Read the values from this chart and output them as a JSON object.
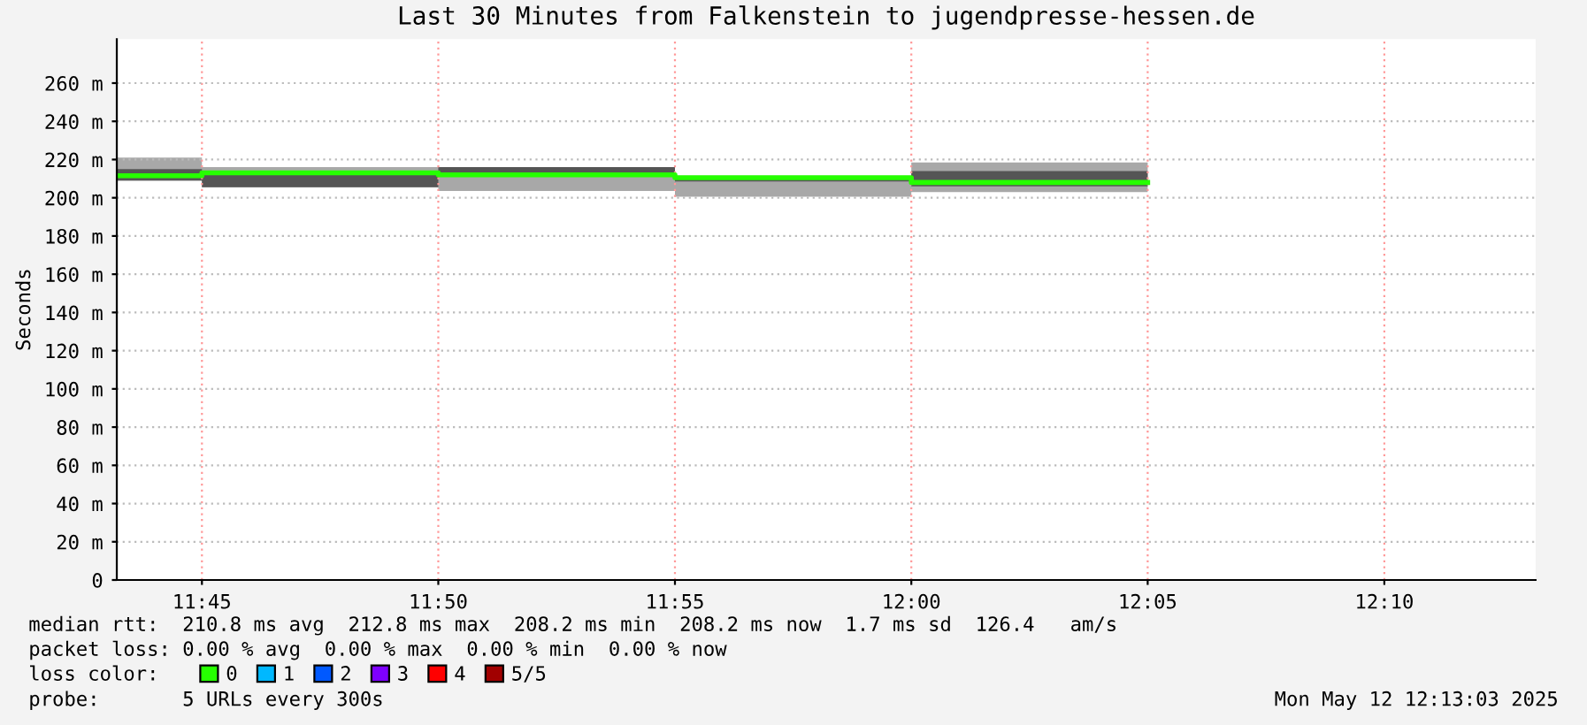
{
  "chart_data": {
    "type": "step",
    "title": "Last 30 Minutes from Falkenstein to jugendpresse-hessen.de",
    "ylabel": "Seconds",
    "x": [
      11.72,
      11.75,
      11.8333,
      11.9167,
      12.0,
      12.0833
    ],
    "series": [
      {
        "color": "#a8a8a8",
        "values": [
          null,
          null,
          null,
          null,
          null,
          null
        ],
        "lower": [
          209,
          205.5,
          203.5,
          200.5,
          203,
          203
        ],
        "upper": [
          221,
          216,
          216,
          211.5,
          218.5,
          218.5
        ]
      },
      {
        "color": "#555555",
        "values": [
          null,
          null,
          null,
          null,
          null,
          null
        ],
        "lower": [
          209,
          205.5,
          211,
          208.5,
          206,
          206
        ],
        "upper": [
          215,
          214,
          216,
          211,
          214,
          214
        ]
      },
      {
        "name": "0",
        "color": "#26ff00",
        "values": [
          211.5,
          213,
          212,
          210.5,
          208,
          208
        ]
      },
      {
        "name": "1",
        "color": "#00b8ff",
        "values": [
          null,
          null,
          null,
          null,
          null,
          null
        ]
      },
      {
        "name": "2",
        "color": "#0059ff",
        "values": [
          null,
          null,
          null,
          null,
          null,
          null
        ]
      },
      {
        "name": "3",
        "color": "#7e00ff",
        "values": [
          null,
          null,
          null,
          null,
          null,
          null
        ]
      },
      {
        "name": "4",
        "color": "#ff0000",
        "values": [
          null,
          null,
          null,
          null,
          null,
          null
        ]
      },
      {
        "name": "5/5",
        "color": "#a10000",
        "values": [
          null,
          null,
          null,
          null,
          null,
          null
        ]
      }
    ],
    "legend_title": "loss color:",
    "legend": "bottom left",
    "xlim": [
      11.72,
      12.22
    ],
    "xticks": [
      {
        "value": 11.75,
        "label": "11:45"
      },
      {
        "value": 11.8333,
        "label": "11:50"
      },
      {
        "value": 11.9167,
        "label": "11:55"
      },
      {
        "value": 12.0,
        "label": "12:00"
      },
      {
        "value": 12.0833,
        "label": "12:05"
      },
      {
        "value": 12.1667,
        "label": "12:10"
      }
    ],
    "ylim": [
      0,
      283
    ],
    "yticks": [
      {
        "value": 0,
        "label": "0"
      },
      {
        "value": 20,
        "label": "20 m"
      },
      {
        "value": 40,
        "label": "40 m"
      },
      {
        "value": 60,
        "label": "60 m"
      },
      {
        "value": 80,
        "label": "80 m"
      },
      {
        "value": 100,
        "label": "100 m"
      },
      {
        "value": 120,
        "label": "120 m"
      },
      {
        "value": 140,
        "label": "140 m"
      },
      {
        "value": 160,
        "label": "160 m"
      },
      {
        "value": 180,
        "label": "180 m"
      },
      {
        "value": 200,
        "label": "200 m"
      },
      {
        "value": 220,
        "label": "220 m"
      },
      {
        "value": 240,
        "label": "240 m"
      },
      {
        "value": 260,
        "label": "260 m"
      }
    ],
    "grid": true,
    "annotations": [
      "median rtt:  210.8 ms avg  212.8 ms max  208.2 ms min  208.2 ms now  1.7 ms sd  126.4   am/s",
      "packet loss: 0.00 % avg  0.00 % max  0.00 % min  0.00 % now",
      "probe:       5 URLs every 300s",
      "Mon May 12 12:13:03 2025"
    ]
  }
}
